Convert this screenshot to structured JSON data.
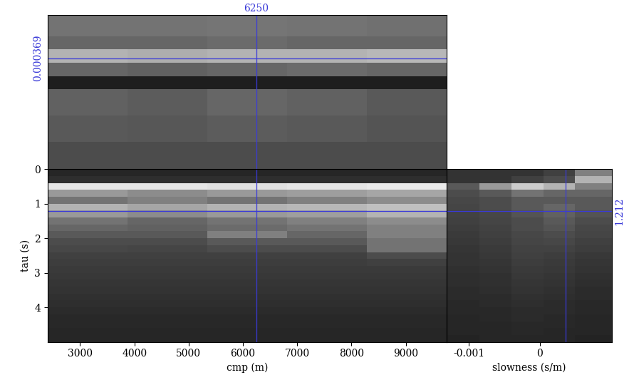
{
  "chart_data": [
    {
      "type": "heatmap",
      "xlabel": "cmp (m)",
      "ylabel": "tau (s)",
      "xlim": [
        2400,
        9760
      ],
      "ylim": [
        5,
        0
      ],
      "xticks": [
        3000,
        4000,
        5000,
        6000,
        7000,
        8000,
        9000
      ],
      "yticks": [
        0,
        1,
        2,
        3,
        4
      ],
      "x_edges": [
        2400,
        3870,
        5340,
        6810,
        8280,
        9760
      ],
      "y_edges": [
        0,
        0.2,
        0.4,
        0.6,
        0.8,
        1.0,
        1.2,
        1.4,
        1.6,
        1.8,
        2.0,
        2.2,
        2.4,
        2.6,
        2.8,
        3.0,
        3.2,
        3.4,
        3.6,
        3.8,
        4.0,
        4.2,
        4.4,
        4.6,
        4.8,
        5.0
      ],
      "cells": [
        [
          0.15,
          0.15,
          0.15,
          0.15,
          0.15
        ],
        [
          0.18,
          0.18,
          0.18,
          0.18,
          0.18
        ],
        [
          0.9,
          0.9,
          0.88,
          0.9,
          0.92
        ],
        [
          0.6,
          0.55,
          0.6,
          0.62,
          0.65
        ],
        [
          0.45,
          0.5,
          0.45,
          0.5,
          0.55
        ],
        [
          0.7,
          0.65,
          0.7,
          0.72,
          0.75
        ],
        [
          0.6,
          0.55,
          0.6,
          0.62,
          0.7
        ],
        [
          0.45,
          0.4,
          0.45,
          0.5,
          0.55
        ],
        [
          0.4,
          0.38,
          0.42,
          0.45,
          0.5
        ],
        [
          0.35,
          0.35,
          0.5,
          0.4,
          0.5
        ],
        [
          0.3,
          0.3,
          0.35,
          0.35,
          0.45
        ],
        [
          0.28,
          0.27,
          0.3,
          0.3,
          0.45
        ],
        [
          0.25,
          0.25,
          0.25,
          0.25,
          0.3
        ],
        [
          0.24,
          0.24,
          0.24,
          0.24,
          0.25
        ],
        [
          0.23,
          0.23,
          0.23,
          0.23,
          0.23
        ],
        [
          0.22,
          0.22,
          0.22,
          0.22,
          0.22
        ],
        [
          0.21,
          0.21,
          0.21,
          0.21,
          0.21
        ],
        [
          0.2,
          0.2,
          0.2,
          0.2,
          0.2
        ],
        [
          0.19,
          0.19,
          0.19,
          0.19,
          0.19
        ],
        [
          0.18,
          0.18,
          0.18,
          0.18,
          0.18
        ],
        [
          0.17,
          0.17,
          0.17,
          0.17,
          0.17
        ],
        [
          0.16,
          0.16,
          0.16,
          0.16,
          0.16
        ],
        [
          0.16,
          0.16,
          0.16,
          0.16,
          0.16
        ],
        [
          0.15,
          0.15,
          0.15,
          0.15,
          0.15
        ],
        [
          0.15,
          0.15,
          0.15,
          0.15,
          0.15
        ]
      ],
      "color_range": [
        0,
        1
      ],
      "color": "#3a3ad8",
      "crosshair": {
        "x": 6250,
        "y": 1.212
      }
    },
    {
      "type": "heatmap",
      "tick_labels": false,
      "xlim": [
        2400,
        9760
      ],
      "ylim": [
        -0.00131,
        0.00102
      ],
      "x_edges": [
        2400,
        3870,
        5340,
        6810,
        8280,
        9760
      ],
      "y_edges": [
        -0.00131,
        -0.0009,
        -0.0005,
        -0.0001,
        0.0001,
        0.0003,
        0.0005,
        0.0007,
        0.00102
      ],
      "cells": [
        [
          0.3,
          0.3,
          0.3,
          0.3,
          0.3
        ],
        [
          0.35,
          0.34,
          0.36,
          0.35,
          0.33
        ],
        [
          0.38,
          0.36,
          0.4,
          0.38,
          0.35
        ],
        [
          0.12,
          0.12,
          0.12,
          0.12,
          0.12
        ],
        [
          0.4,
          0.38,
          0.4,
          0.42,
          0.4
        ],
        [
          0.7,
          0.68,
          0.7,
          0.7,
          0.72
        ],
        [
          0.4,
          0.4,
          0.42,
          0.4,
          0.4
        ],
        [
          0.45,
          0.45,
          0.46,
          0.45,
          0.44
        ]
      ],
      "color_range": [
        0,
        1
      ],
      "color": "#3a3ad8",
      "crosshair": {
        "x": 6250,
        "y": 0.000369
      }
    },
    {
      "type": "heatmap",
      "xlabel": "slowness (s/m)",
      "tick_labels": "x",
      "xlim": [
        -0.00131,
        0.00102
      ],
      "ylim": [
        5,
        0
      ],
      "xticks": [
        -0.001,
        0
      ],
      "x_edges": [
        -0.00131,
        -0.00085,
        -0.0004,
        5e-05,
        0.0005,
        0.00102
      ],
      "y_edges": [
        0,
        0.2,
        0.4,
        0.6,
        0.8,
        1.0,
        1.2,
        1.4,
        1.6,
        1.8,
        2.0,
        2.2,
        2.4,
        2.6,
        2.8,
        3.0,
        3.2,
        3.4,
        3.6,
        3.8,
        4.0,
        4.2,
        4.4,
        4.6,
        4.8,
        5.0
      ],
      "cells": [
        [
          0.2,
          0.2,
          0.2,
          0.25,
          0.5
        ],
        [
          0.2,
          0.2,
          0.25,
          0.3,
          0.7
        ],
        [
          0.35,
          0.6,
          0.8,
          0.7,
          0.5
        ],
        [
          0.3,
          0.35,
          0.45,
          0.4,
          0.4
        ],
        [
          0.28,
          0.3,
          0.35,
          0.35,
          0.35
        ],
        [
          0.27,
          0.3,
          0.35,
          0.4,
          0.35
        ],
        [
          0.26,
          0.28,
          0.33,
          0.38,
          0.33
        ],
        [
          0.25,
          0.27,
          0.3,
          0.35,
          0.3
        ],
        [
          0.24,
          0.26,
          0.3,
          0.33,
          0.28
        ],
        [
          0.23,
          0.25,
          0.28,
          0.3,
          0.27
        ],
        [
          0.22,
          0.24,
          0.27,
          0.28,
          0.25
        ],
        [
          0.21,
          0.23,
          0.26,
          0.26,
          0.24
        ],
        [
          0.2,
          0.22,
          0.25,
          0.24,
          0.22
        ],
        [
          0.2,
          0.21,
          0.24,
          0.23,
          0.21
        ],
        [
          0.19,
          0.2,
          0.23,
          0.22,
          0.2
        ],
        [
          0.18,
          0.19,
          0.22,
          0.21,
          0.19
        ],
        [
          0.18,
          0.19,
          0.21,
          0.2,
          0.18
        ],
        [
          0.17,
          0.18,
          0.2,
          0.19,
          0.17
        ],
        [
          0.17,
          0.17,
          0.19,
          0.18,
          0.17
        ],
        [
          0.16,
          0.17,
          0.18,
          0.17,
          0.16
        ],
        [
          0.16,
          0.16,
          0.17,
          0.17,
          0.16
        ],
        [
          0.15,
          0.16,
          0.17,
          0.16,
          0.15
        ],
        [
          0.15,
          0.15,
          0.16,
          0.16,
          0.15
        ],
        [
          0.15,
          0.15,
          0.16,
          0.15,
          0.15
        ],
        [
          0.14,
          0.15,
          0.15,
          0.15,
          0.14
        ]
      ],
      "color_range": [
        0,
        1
      ],
      "color": "#3a3ad8",
      "crosshair": {
        "x": 0.000369,
        "y": 1.212
      }
    }
  ]
}
